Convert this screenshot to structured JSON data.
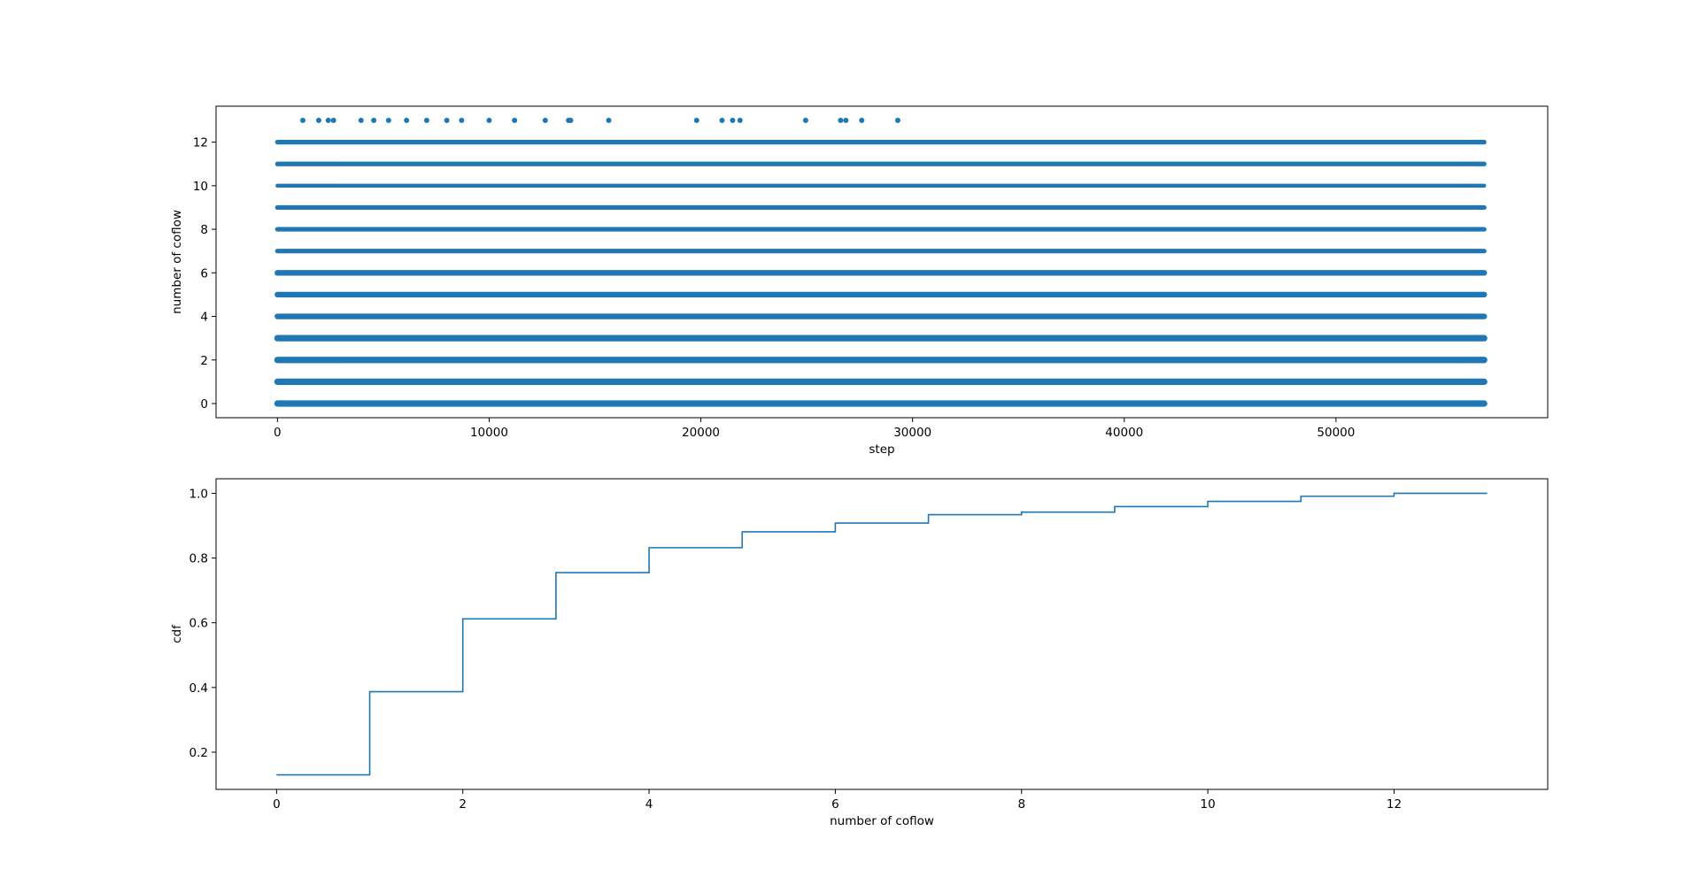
{
  "colors": {
    "series": "#1f77b4",
    "axes": "#000000",
    "background": "#ffffff"
  },
  "chart_data": [
    {
      "type": "scatter",
      "title": "",
      "xlabel": "step",
      "ylabel": "number of coflow",
      "xlim": [
        -2900,
        60000
      ],
      "ylim": [
        -0.65,
        13.65
      ],
      "xticks": [
        0,
        10000,
        20000,
        30000,
        40000,
        50000
      ],
      "xtick_labels": [
        "0",
        "10000",
        "20000",
        "30000",
        "40000",
        "50000"
      ],
      "yticks": [
        0,
        2,
        4,
        6,
        8,
        10,
        12
      ],
      "ytick_labels": [
        "0",
        "2",
        "4",
        "6",
        "8",
        "10",
        "12"
      ],
      "grid": false,
      "legend": false,
      "bands": [
        {
          "y": 0,
          "x_range": [
            0,
            57000
          ],
          "density": "very high"
        },
        {
          "y": 1,
          "x_range": [
            0,
            57000
          ],
          "density": "very high"
        },
        {
          "y": 2,
          "x_range": [
            0,
            57000
          ],
          "density": "very high"
        },
        {
          "y": 3,
          "x_range": [
            0,
            57000
          ],
          "density": "very high"
        },
        {
          "y": 4,
          "x_range": [
            0,
            57000
          ],
          "density": "high"
        },
        {
          "y": 5,
          "x_range": [
            0,
            57000
          ],
          "density": "high"
        },
        {
          "y": 6,
          "x_range": [
            0,
            57000
          ],
          "density": "high"
        },
        {
          "y": 7,
          "x_range": [
            0,
            57000
          ],
          "density": "medium"
        },
        {
          "y": 8,
          "x_range": [
            0,
            57000
          ],
          "density": "medium"
        },
        {
          "y": 9,
          "x_range": [
            0,
            57000
          ],
          "density": "medium"
        },
        {
          "y": 10,
          "x_range": [
            0,
            57000
          ],
          "density": "low"
        },
        {
          "y": 11,
          "x_range": [
            0,
            57000
          ],
          "density": "medium"
        },
        {
          "y": 12,
          "x_range": [
            0,
            57000
          ],
          "density": "medium"
        }
      ],
      "sparse_points": {
        "y": 13,
        "x": [
          1200,
          1950,
          2400,
          2650,
          3950,
          4550,
          5250,
          6100,
          7050,
          8000,
          8700,
          10000,
          11200,
          12650,
          13750,
          13850,
          15650,
          19800,
          21000,
          21500,
          21850,
          24950,
          26600,
          26850,
          27600,
          29300
        ]
      }
    },
    {
      "type": "line",
      "title": "",
      "xlabel": "number of coflow",
      "ylabel": "cdf",
      "xlim": [
        -0.65,
        13.65
      ],
      "ylim": [
        0.085,
        1.045
      ],
      "xticks": [
        0,
        2,
        4,
        6,
        8,
        10,
        12
      ],
      "xtick_labels": [
        "0",
        "2",
        "4",
        "6",
        "8",
        "10",
        "12"
      ],
      "yticks": [
        0.2,
        0.4,
        0.6,
        0.8,
        1.0
      ],
      "ytick_labels": [
        "0.2",
        "0.4",
        "0.6",
        "0.8",
        "1.0"
      ],
      "grid": false,
      "legend": false,
      "drawstyle": "steps-post",
      "x": [
        0,
        1,
        2,
        3,
        4,
        5,
        6,
        7,
        8,
        9,
        10,
        11,
        12,
        13
      ],
      "y": [
        0.13,
        0.387,
        0.612,
        0.755,
        0.832,
        0.881,
        0.908,
        0.934,
        0.942,
        0.959,
        0.975,
        0.991,
        1.0,
        1.0
      ]
    }
  ]
}
